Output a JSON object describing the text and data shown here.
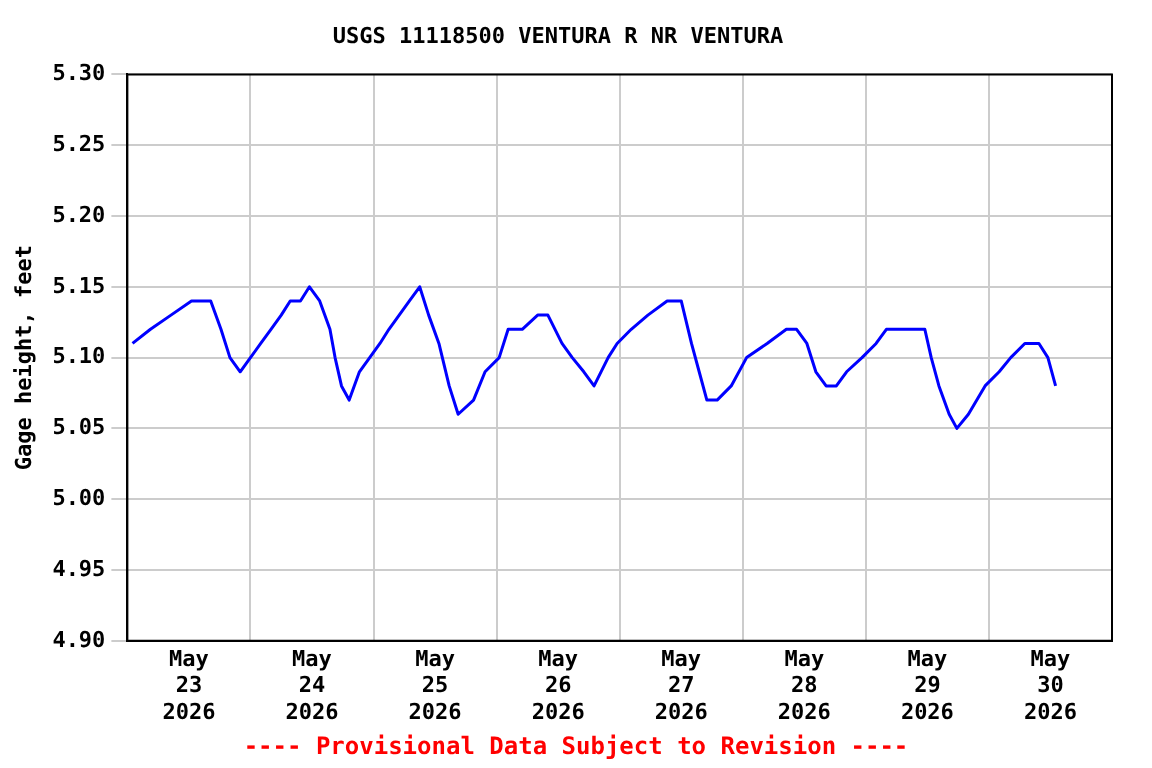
{
  "chart_data": {
    "type": "line",
    "title": "USGS 11118500 VENTURA R NR VENTURA",
    "ylabel": "Gage height, feet",
    "annotations": [
      "---- Provisional Data Subject to Revision ----"
    ],
    "x": [
      "2026-05-23T01:00",
      "2026-05-23T04:30",
      "2026-05-23T08:30",
      "2026-05-23T12:30",
      "2026-05-23T16:15",
      "2026-05-23T18:15",
      "2026-05-23T20:00",
      "2026-05-23T22:00",
      "2026-05-24T00:00",
      "2026-05-24T02:00",
      "2026-05-24T04:00",
      "2026-05-24T06:00",
      "2026-05-24T07:45",
      "2026-05-24T09:45",
      "2026-05-24T11:30",
      "2026-05-24T13:30",
      "2026-05-24T15:30",
      "2026-05-24T16:30",
      "2026-05-24T17:45",
      "2026-05-24T19:15",
      "2026-05-24T21:15",
      "2026-05-24T23:15",
      "2026-05-25T01:15",
      "2026-05-25T03:00",
      "2026-05-25T05:00",
      "2026-05-25T07:00",
      "2026-05-25T09:00",
      "2026-05-25T10:45",
      "2026-05-25T12:45",
      "2026-05-25T14:45",
      "2026-05-25T16:30",
      "2026-05-25T19:30",
      "2026-05-25T21:45",
      "2026-05-26T00:30",
      "2026-05-26T02:15",
      "2026-05-26T05:00",
      "2026-05-26T08:00",
      "2026-05-26T10:00",
      "2026-05-26T12:45",
      "2026-05-26T14:45",
      "2026-05-26T17:00",
      "2026-05-26T19:00",
      "2026-05-26T21:45",
      "2026-05-26T23:30",
      "2026-05-27T02:15",
      "2026-05-27T05:30",
      "2026-05-27T09:15",
      "2026-05-27T12:00",
      "2026-05-27T14:00",
      "2026-05-27T15:30",
      "2026-05-27T17:00",
      "2026-05-27T19:00",
      "2026-05-27T21:45",
      "2026-05-28T00:45",
      "2026-05-28T04:45",
      "2026-05-28T08:30",
      "2026-05-28T10:30",
      "2026-05-28T12:30",
      "2026-05-28T14:15",
      "2026-05-28T16:15",
      "2026-05-28T18:15",
      "2026-05-28T20:15",
      "2026-05-28T23:15",
      "2026-05-29T02:00",
      "2026-05-29T04:00",
      "2026-05-29T07:45",
      "2026-05-29T11:30",
      "2026-05-29T12:45",
      "2026-05-29T14:15",
      "2026-05-29T16:15",
      "2026-05-29T17:45",
      "2026-05-29T20:00",
      "2026-05-29T23:15",
      "2026-05-30T02:00",
      "2026-05-30T04:15",
      "2026-05-30T07:00",
      "2026-05-30T09:45",
      "2026-05-30T11:30",
      "2026-05-30T13:00"
    ],
    "series": [
      {
        "color": "#0000ff",
        "values": [
          5.11,
          5.12,
          5.13,
          5.14,
          5.14,
          5.12,
          5.1,
          5.09,
          5.1,
          5.11,
          5.12,
          5.13,
          5.14,
          5.14,
          5.15,
          5.14,
          5.12,
          5.1,
          5.08,
          5.07,
          5.09,
          5.1,
          5.11,
          5.12,
          5.13,
          5.14,
          5.15,
          5.13,
          5.11,
          5.08,
          5.06,
          5.07,
          5.09,
          5.1,
          5.12,
          5.12,
          5.13,
          5.13,
          5.11,
          5.1,
          5.09,
          5.08,
          5.1,
          5.11,
          5.12,
          5.13,
          5.14,
          5.14,
          5.11,
          5.09,
          5.07,
          5.07,
          5.08,
          5.1,
          5.11,
          5.12,
          5.12,
          5.11,
          5.09,
          5.08,
          5.08,
          5.09,
          5.1,
          5.11,
          5.12,
          5.12,
          5.12,
          5.1,
          5.08,
          5.06,
          5.05,
          5.06,
          5.08,
          5.09,
          5.1,
          5.11,
          5.11,
          5.1,
          5.08
        ]
      }
    ],
    "xlim": [
      "2026-05-23",
      "2026-05-31"
    ],
    "xticks": [
      {
        "value": "2026-05-23T12:00",
        "label": "May 23 2026"
      },
      {
        "value": "2026-05-24",
        "label": null
      },
      {
        "value": "2026-05-24T12:00",
        "label": "May 24 2026"
      },
      {
        "value": "2026-05-25",
        "label": null
      },
      {
        "value": "2026-05-25T12:00",
        "label": "May 25 2026"
      },
      {
        "value": "2026-05-26",
        "label": null
      },
      {
        "value": "2026-05-26T12:00",
        "label": "May 26 2026"
      },
      {
        "value": "2026-05-27",
        "label": null
      },
      {
        "value": "2026-05-27T12:00",
        "label": "May 27 2026"
      },
      {
        "value": "2026-05-28",
        "label": null
      },
      {
        "value": "2026-05-28T12:00",
        "label": "May 28 2026"
      },
      {
        "value": "2026-05-29",
        "label": null
      },
      {
        "value": "2026-05-29T12:00",
        "label": "May 29 2026"
      },
      {
        "value": "2026-05-30",
        "label": null
      },
      {
        "value": "2026-05-30T12:00",
        "label": "May 30 2026"
      }
    ],
    "ylim": [
      4.9,
      5.3
    ],
    "yticks": [
      {
        "value": 4.9,
        "label": "4.90"
      },
      {
        "value": 4.95,
        "label": "4.95"
      },
      {
        "value": 5.0,
        "label": "5.00"
      },
      {
        "value": 5.05,
        "label": "5.05"
      },
      {
        "value": 5.1,
        "label": "5.10"
      },
      {
        "value": 5.15,
        "label": "5.15"
      },
      {
        "value": 5.2,
        "label": "5.20"
      },
      {
        "value": 5.25,
        "label": "5.25"
      },
      {
        "value": 5.3,
        "label": "5.30"
      }
    ],
    "grid": true,
    "legend": false,
    "marker": "none",
    "line_style": "solid"
  }
}
